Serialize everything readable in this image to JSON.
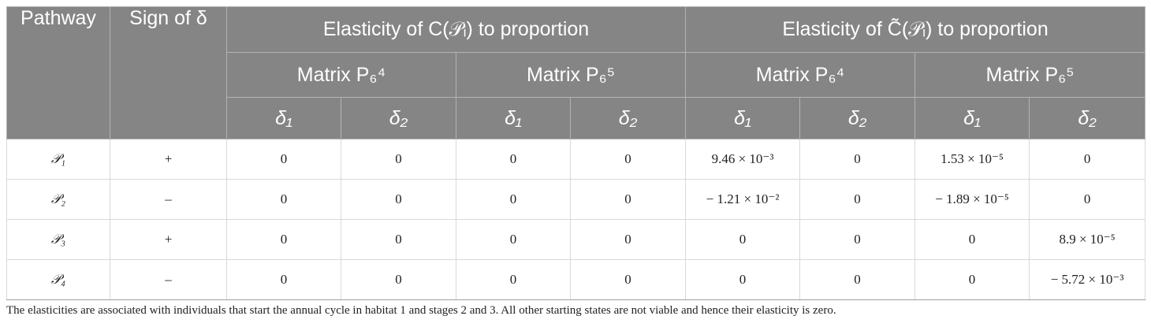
{
  "table": {
    "header": {
      "pathway": "Pathway",
      "sign": "Sign of δ",
      "group_c": "Elasticity of C(𝒫ᵢ) to proportion",
      "group_c_tilde": "Elasticity of C̃(𝒫ᵢ) to proportion",
      "matrix_p64": "Matrix P₆⁴",
      "matrix_p65": "Matrix P₆⁵",
      "delta1": "δ₁",
      "delta2": "δ₂"
    },
    "rows": [
      {
        "pathway": "𝒫₁",
        "sign": "+",
        "values": [
          "0",
          "0",
          "0",
          "0",
          "9.46 × 10⁻³",
          "0",
          "1.53 × 10⁻⁵",
          "0"
        ]
      },
      {
        "pathway": "𝒫₂",
        "sign": "–",
        "values": [
          "0",
          "0",
          "0",
          "0",
          "− 1.21 × 10⁻²",
          "0",
          "− 1.89 × 10⁻⁵",
          "0"
        ]
      },
      {
        "pathway": "𝒫₃",
        "sign": "+",
        "values": [
          "0",
          "0",
          "0",
          "0",
          "0",
          "0",
          "0",
          "8.9 × 10⁻⁵"
        ]
      },
      {
        "pathway": "𝒫₄",
        "sign": "–",
        "values": [
          "0",
          "0",
          "0",
          "0",
          "0",
          "0",
          "0",
          "− 5.72 × 10⁻³"
        ]
      }
    ]
  },
  "footnote": "The elasticities are associated with individuals that start the annual cycle in habitat 1 and stages 2 and 3. All other starting states are not viable and hence their elasticity is zero."
}
